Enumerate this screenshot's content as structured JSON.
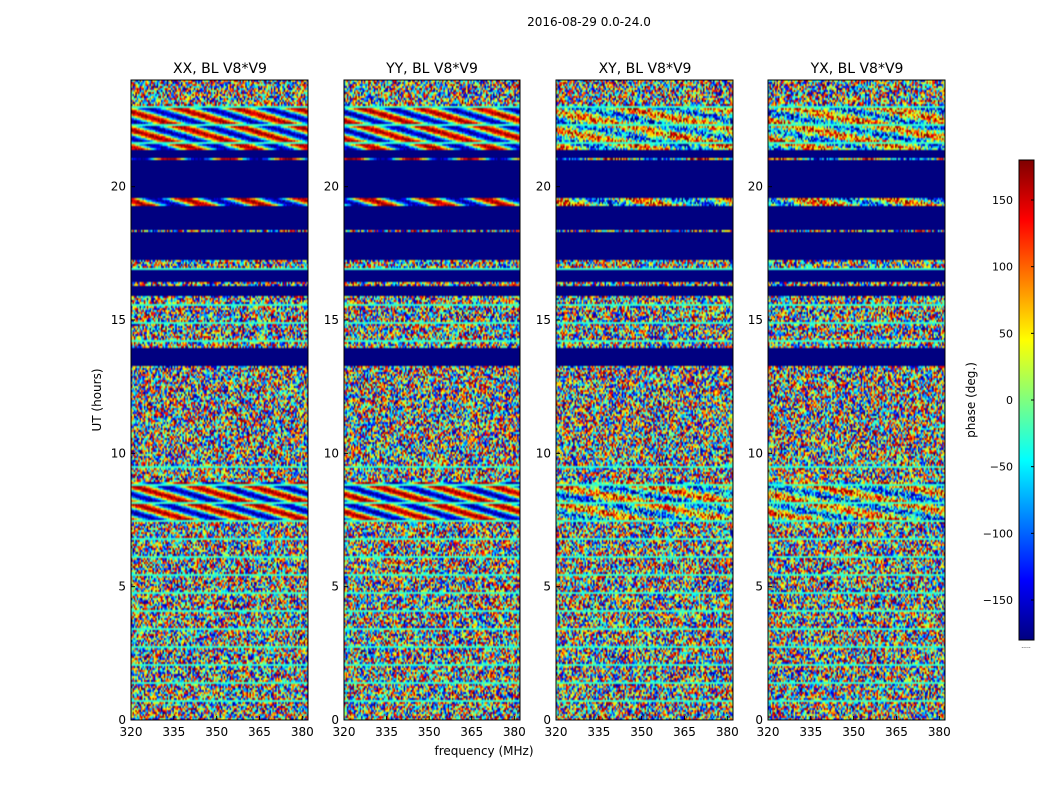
{
  "chart_data": {
    "type": "heatmap",
    "suptitle": "2016-08-29 0.0-24.0",
    "xlabel": "frequency (MHz)",
    "ylabel": "UT (hours)",
    "xlim": [
      320,
      382
    ],
    "ylim": [
      0,
      24
    ],
    "xticks": [
      320,
      335,
      350,
      365,
      380
    ],
    "yticks": [
      0,
      5,
      10,
      15,
      20
    ],
    "panels": [
      {
        "title": "XX, BL V8*V9",
        "pol": "XX"
      },
      {
        "title": "YY, BL V8*V9",
        "pol": "YY"
      },
      {
        "title": "XY, BL V8*V9",
        "pol": "XY"
      },
      {
        "title": "YX, BL V8*V9",
        "pol": "YX"
      }
    ],
    "flagged_ut_ranges": [
      [
        13.3,
        13.6
      ],
      [
        13.6,
        14.0
      ],
      [
        15.9,
        16.3
      ],
      [
        16.5,
        16.9
      ],
      [
        17.3,
        18.3
      ],
      [
        18.4,
        19.3
      ],
      [
        19.6,
        21.0
      ],
      [
        21.1,
        21.4
      ]
    ],
    "colorbar": {
      "label": "phase (deg.)",
      "range": [
        -180,
        180
      ],
      "ticks": [
        -150,
        -100,
        -50,
        0,
        50,
        100,
        150
      ],
      "tick_labels": [
        "−150",
        "−100",
        "−50",
        "0",
        "50",
        "100",
        "150"
      ],
      "colormap": "jet",
      "colors": [
        "#00007f",
        "#0000ff",
        "#007fff",
        "#00ffff",
        "#7fff7f",
        "#ffff00",
        "#ff7f00",
        "#ff0000",
        "#7f0000"
      ]
    },
    "corner_marker": "....."
  }
}
